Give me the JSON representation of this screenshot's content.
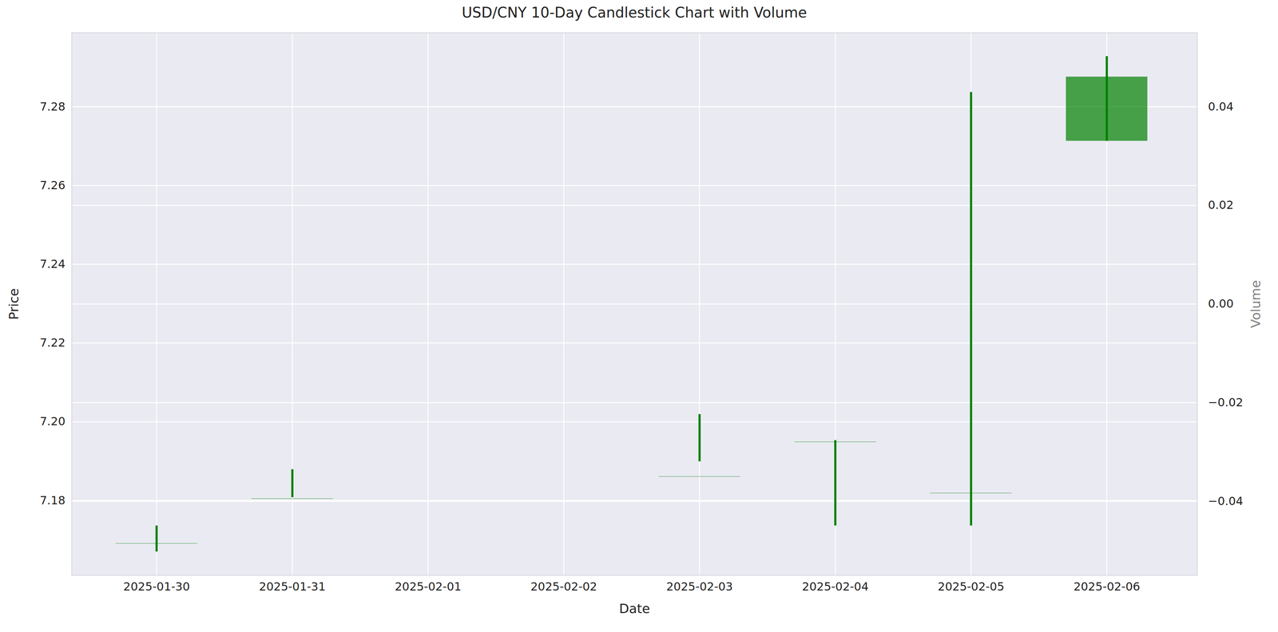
{
  "chart_data": {
    "type": "candlestick",
    "title": "USD/CNY 10-Day Candlestick Chart with Volume",
    "xlabel": "Date",
    "ylabel": "Price",
    "y2label": "Volume",
    "x": [
      "2025-01-30",
      "2025-01-31",
      "2025-02-03",
      "2025-02-04",
      "2025-02-05",
      "2025-02-06"
    ],
    "open": [
      7.169,
      7.1804,
      7.186,
      7.1948,
      7.1818,
      7.2713
    ],
    "high": [
      7.1736,
      7.1879,
      7.2019,
      7.1953,
      7.2837,
      7.2928
    ],
    "low": [
      7.167,
      7.1808,
      7.1899,
      7.1736,
      7.1736,
      7.2713
    ],
    "close": [
      7.1691,
      7.1805,
      7.1861,
      7.1949,
      7.1819,
      7.2876
    ],
    "volume": [
      0,
      0,
      0,
      0,
      0,
      0
    ],
    "color": "#008000",
    "xlim": [
      "2025-01-29T09:00",
      "2025-02-06T16:00"
    ],
    "xticks": [
      "2025-01-30",
      "2025-01-31",
      "2025-02-01",
      "2025-02-02",
      "2025-02-03",
      "2025-02-04",
      "2025-02-05",
      "2025-02-06"
    ],
    "ylim": [
      7.161,
      7.2988
    ],
    "yticks": [
      7.18,
      {
        "value": 7.2,
        "label": "7.20"
      },
      7.22,
      7.24,
      7.26,
      7.28
    ],
    "y2lim": [
      -0.055,
      0.055
    ],
    "y2ticks": [
      {
        "value": -0.04,
        "label": "−0.04"
      },
      {
        "value": -0.02,
        "label": "−0.02"
      },
      {
        "value": 0,
        "label": "0.00"
      },
      0.02,
      0.04
    ],
    "grid": true
  }
}
